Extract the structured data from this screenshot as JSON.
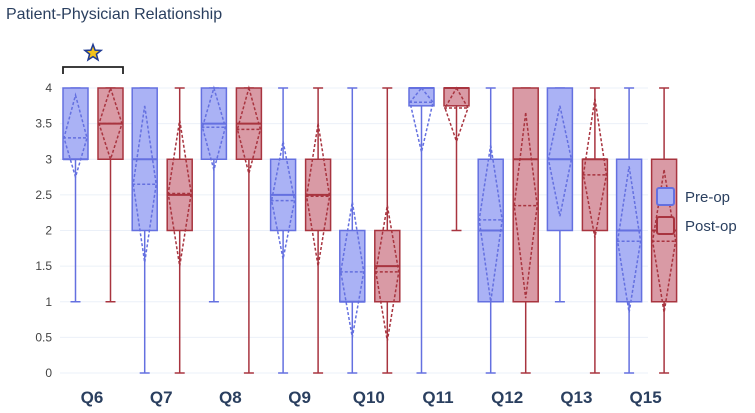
{
  "chart_data": {
    "type": "box",
    "title": "Patient-Physician Relationship",
    "xlabel": "",
    "ylabel": "",
    "ylim": [
      0,
      4
    ],
    "yticks": [
      0,
      0.5,
      1,
      1.5,
      2,
      2.5,
      3,
      3.5,
      4
    ],
    "ytick_labels": [
      "0",
      "0.5",
      "1",
      "1.5",
      "2",
      "2.5",
      "3",
      "3.5",
      "4"
    ],
    "categories": [
      "Q6",
      "Q7",
      "Q8",
      "Q9",
      "Q10",
      "Q11",
      "Q12",
      "Q13",
      "Q15"
    ],
    "grid": true,
    "legend_position": "right",
    "annotation": {
      "type": "significance-star",
      "category": "Q6",
      "symbol": "star"
    },
    "series": [
      {
        "name": "Pre-op",
        "fill_color": "#aab2f5",
        "line_color": "#6470e0",
        "boxes": [
          {
            "min": 1,
            "q1": 3,
            "median": 3,
            "q3": 4,
            "max": 4,
            "mean": 3.3,
            "sd_low": 2.75,
            "sd_high": 3.9
          },
          {
            "min": 0,
            "q1": 2,
            "median": 3,
            "q3": 4,
            "max": 4,
            "mean": 2.65,
            "sd_low": 1.55,
            "sd_high": 3.75
          },
          {
            "min": 1,
            "q1": 3,
            "median": 3.5,
            "q3": 4,
            "max": 4,
            "mean": 3.45,
            "sd_low": 2.85,
            "sd_high": 4.0
          },
          {
            "min": 0,
            "q1": 2,
            "median": 2.5,
            "q3": 3,
            "max": 4,
            "mean": 2.42,
            "sd_low": 1.6,
            "sd_high": 3.25
          },
          {
            "min": 0,
            "q1": 1,
            "median": 1,
            "q3": 2,
            "max": 4,
            "mean": 1.42,
            "sd_low": 0.5,
            "sd_high": 2.4
          },
          {
            "min": 0,
            "q1": 3.75,
            "median": 4,
            "q3": 4,
            "max": 4,
            "mean": 3.8,
            "sd_low": 3.1,
            "sd_high": 4.0
          },
          {
            "min": 0,
            "q1": 1,
            "median": 2,
            "q3": 3,
            "max": 4,
            "mean": 2.15,
            "sd_low": 1.0,
            "sd_high": 3.2
          },
          {
            "min": 1,
            "q1": 2,
            "median": 3,
            "q3": 4,
            "max": 4,
            "mean": 3.0,
            "sd_low": 2.2,
            "sd_high": 3.75
          },
          {
            "min": 0,
            "q1": 1,
            "median": 2,
            "q3": 3,
            "max": 4,
            "mean": 1.85,
            "sd_low": 0.85,
            "sd_high": 2.9
          }
        ]
      },
      {
        "name": "Post-op",
        "fill_color": "#d99aa5",
        "line_color": "#a8343f",
        "boxes": [
          {
            "min": 1,
            "q1": 3,
            "median": 3.5,
            "q3": 4,
            "max": 4,
            "mean": 3.5,
            "sd_low": 3.0,
            "sd_high": 4.0
          },
          {
            "min": 0,
            "q1": 2,
            "median": 2.5,
            "q3": 3,
            "max": 4,
            "mean": 2.52,
            "sd_low": 1.5,
            "sd_high": 3.55
          },
          {
            "min": 0,
            "q1": 3,
            "median": 3.5,
            "q3": 4,
            "max": 4,
            "mean": 3.42,
            "sd_low": 2.8,
            "sd_high": 4.0
          },
          {
            "min": 0,
            "q1": 2,
            "median": 2.5,
            "q3": 3,
            "max": 4,
            "mean": 2.48,
            "sd_low": 1.5,
            "sd_high": 3.5
          },
          {
            "min": 0,
            "q1": 1,
            "median": 1.5,
            "q3": 2,
            "max": 4,
            "mean": 1.42,
            "sd_low": 0.45,
            "sd_high": 2.35
          },
          {
            "min": 2,
            "q1": 3.75,
            "median": 4,
            "q3": 4,
            "max": 4,
            "mean": 3.72,
            "sd_low": 3.25,
            "sd_high": 4.0
          },
          {
            "min": 0,
            "q1": 1,
            "median": 3,
            "q3": 4,
            "max": 4,
            "mean": 2.35,
            "sd_low": 1.05,
            "sd_high": 3.65
          },
          {
            "min": 0,
            "q1": 2,
            "median": 3,
            "q3": 3,
            "max": 4,
            "mean": 2.78,
            "sd_low": 1.9,
            "sd_high": 3.85
          },
          {
            "min": 0,
            "q1": 1,
            "median": 2,
            "q3": 3,
            "max": 4,
            "mean": 1.85,
            "sd_low": 0.85,
            "sd_high": 2.85
          }
        ]
      }
    ]
  }
}
